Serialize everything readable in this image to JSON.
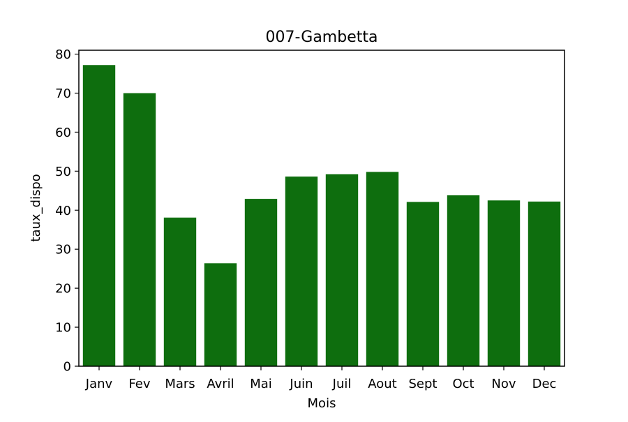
{
  "chart_data": {
    "type": "bar",
    "title": "007-Gambetta",
    "xlabel": "Mois",
    "ylabel": "taux_dispo",
    "categories": [
      "Janv",
      "Fev",
      "Mars",
      "Avril",
      "Mai",
      "Juin",
      "Juil",
      "Aout",
      "Sept",
      "Oct",
      "Nov",
      "Dec"
    ],
    "values": [
      77.2,
      70.0,
      38.1,
      26.4,
      42.9,
      48.6,
      49.2,
      49.8,
      42.1,
      43.8,
      42.5,
      42.2
    ],
    "ylim": [
      0,
      81
    ],
    "yticks": [
      "0",
      "10",
      "20",
      "30",
      "40",
      "50",
      "60",
      "70",
      "80"
    ],
    "bar_color": "#0e6e0e",
    "grid": false,
    "legend": "none"
  }
}
